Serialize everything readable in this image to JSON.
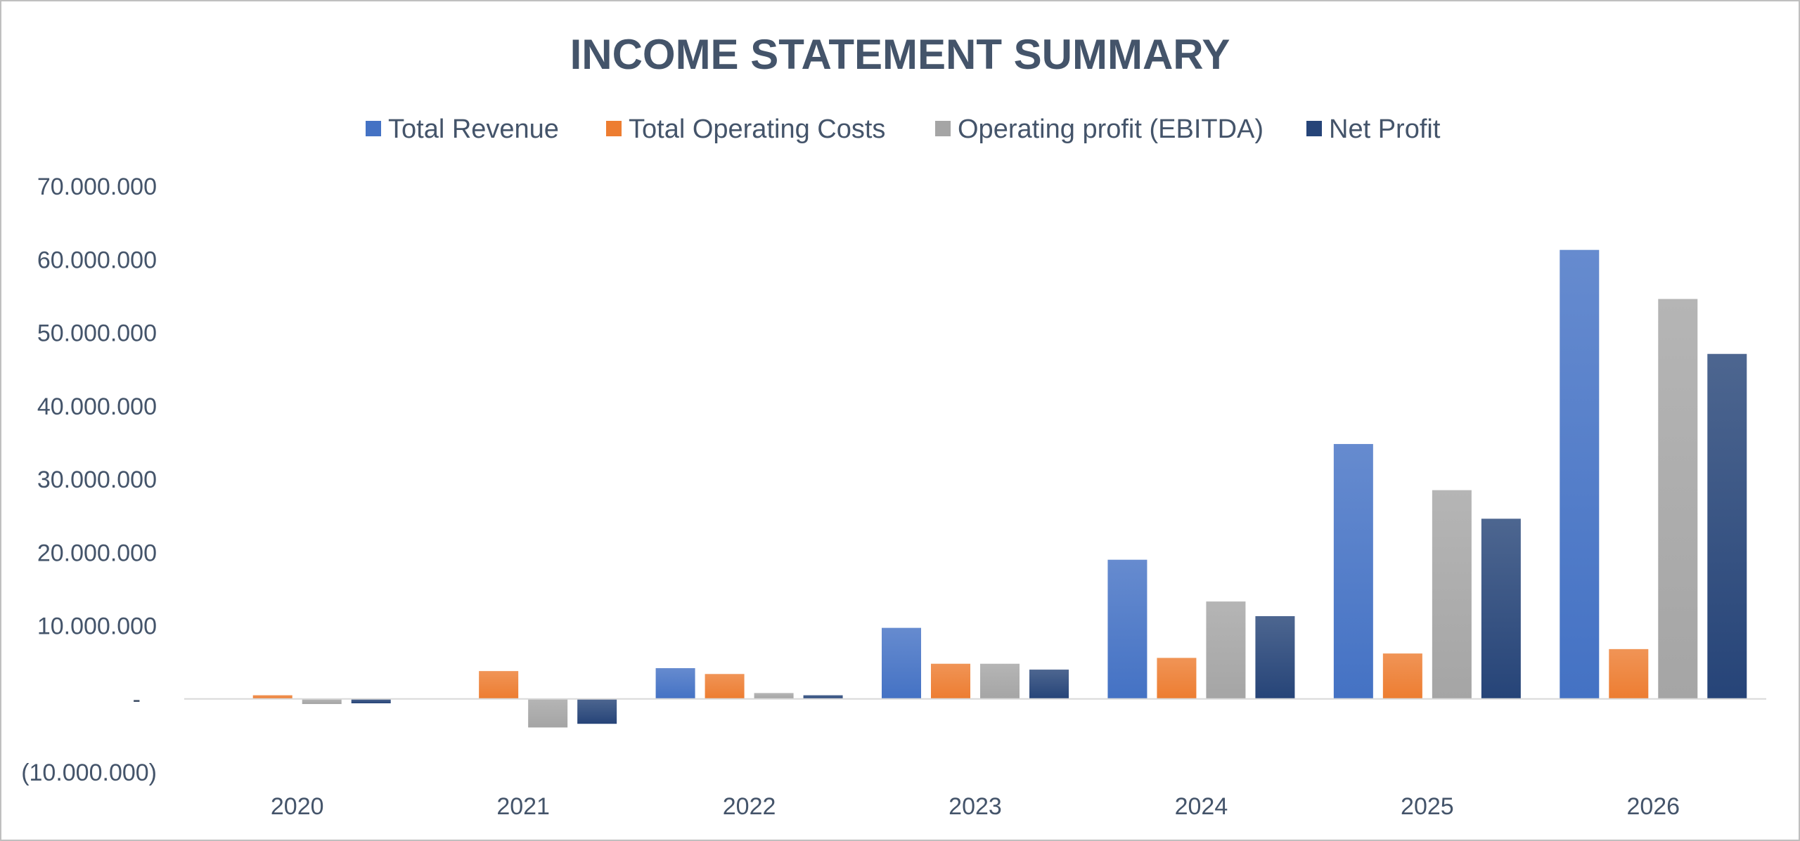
{
  "chart_data": {
    "type": "bar",
    "title": "INCOME STATEMENT SUMMARY",
    "categories": [
      "2020",
      "2021",
      "2022",
      "2023",
      "2024",
      "2025",
      "2026"
    ],
    "series": [
      {
        "name": "Total Revenue",
        "color": "#4472c4",
        "values": [
          0,
          0,
          4200000,
          9700000,
          19000000,
          34800000,
          61300000
        ]
      },
      {
        "name": "Total Operating Costs",
        "color": "#ed7d31",
        "values": [
          500000,
          3800000,
          3400000,
          4800000,
          5600000,
          6200000,
          6800000
        ]
      },
      {
        "name": "Operating profit (EBITDA)",
        "color": "#a5a5a5",
        "values": [
          -700000,
          -3900000,
          800000,
          4800000,
          13300000,
          28500000,
          54600000
        ]
      },
      {
        "name": "Net Profit",
        "color": "#264478",
        "values": [
          -600000,
          -3400000,
          500000,
          4000000,
          11300000,
          24600000,
          47100000
        ]
      }
    ],
    "ylim": [
      -10000000,
      70000000
    ],
    "yticks": [
      {
        "value": 70000000,
        "label": "70.000.000"
      },
      {
        "value": 60000000,
        "label": "60.000.000"
      },
      {
        "value": 50000000,
        "label": "50.000.000"
      },
      {
        "value": 40000000,
        "label": "40.000.000"
      },
      {
        "value": 30000000,
        "label": "30.000.000"
      },
      {
        "value": 20000000,
        "label": "20.000.000"
      },
      {
        "value": 10000000,
        "label": "10.000.000"
      },
      {
        "value": 0,
        "label": "-"
      },
      {
        "value": -10000000,
        "label": "(10.000.000)"
      }
    ],
    "grid": false,
    "legend_position": "top",
    "xlabel": "",
    "ylabel": ""
  }
}
